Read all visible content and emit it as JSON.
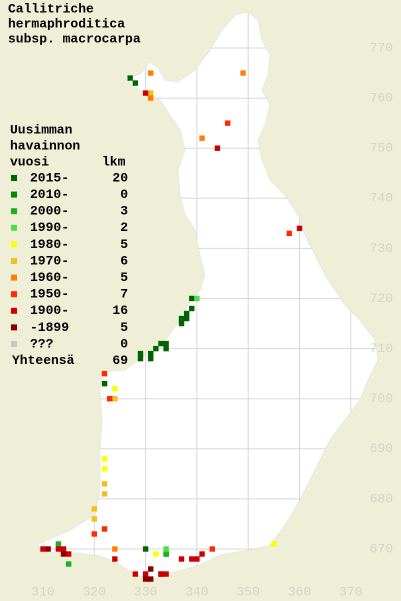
{
  "title": [
    "Callitriche",
    "hermaphroditica",
    "subsp. macrocarpa"
  ],
  "map": {
    "xticks": [
      310,
      320,
      330,
      340,
      350,
      360,
      370
    ],
    "yticks": [
      670,
      680,
      690,
      700,
      710,
      720,
      730,
      740,
      750,
      760,
      770
    ]
  },
  "legend": {
    "title": [
      "Uusimman",
      "havainnon",
      "vuosi"
    ],
    "count_header": "lkm",
    "entries": [
      {
        "label": "2015-",
        "count": 20,
        "color": "#006400"
      },
      {
        "label": "2010-",
        "count": 0,
        "color": "#008a00"
      },
      {
        "label": "2000-",
        "count": 3,
        "color": "#1fb01f"
      },
      {
        "label": "1990-",
        "count": 2,
        "color": "#4ae04a"
      },
      {
        "label": "1980-",
        "count": 5,
        "color": "#ffff00"
      },
      {
        "label": "1970-",
        "count": 6,
        "color": "#f0c020"
      },
      {
        "label": "1960-",
        "count": 5,
        "color": "#ff7f00"
      },
      {
        "label": "1950-",
        "count": 7,
        "color": "#ff2a00"
      },
      {
        "label": "1900-",
        "count": 16,
        "color": "#cc0000"
      },
      {
        "label": "-1899",
        "count": 5,
        "color": "#8b0000"
      },
      {
        "label": "???",
        "count": 0,
        "color": "#c8c8c8"
      }
    ],
    "total_label": "Yhteensä",
    "total": 69
  },
  "points": [
    {
      "x": 327,
      "y": 764,
      "class": 0
    },
    {
      "x": 328,
      "y": 763,
      "class": 0
    },
    {
      "x": 329,
      "y": 709,
      "class": 0
    },
    {
      "x": 329,
      "y": 708,
      "class": 0
    },
    {
      "x": 331,
      "y": 709,
      "class": 0
    },
    {
      "x": 331,
      "y": 708,
      "class": 0
    },
    {
      "x": 332,
      "y": 710,
      "class": 0
    },
    {
      "x": 333,
      "y": 711,
      "class": 0
    },
    {
      "x": 334,
      "y": 711,
      "class": 0
    },
    {
      "x": 334,
      "y": 710,
      "class": 0
    },
    {
      "x": 337,
      "y": 716,
      "class": 0
    },
    {
      "x": 337,
      "y": 715,
      "class": 0
    },
    {
      "x": 338,
      "y": 717,
      "class": 0
    },
    {
      "x": 338,
      "y": 716,
      "class": 0
    },
    {
      "x": 339,
      "y": 718,
      "class": 0
    },
    {
      "x": 339,
      "y": 720,
      "class": 0
    },
    {
      "x": 322,
      "y": 703,
      "class": 0
    },
    {
      "x": 334,
      "y": 669,
      "class": 0
    },
    {
      "x": 333,
      "y": 665,
      "class": 0
    },
    {
      "x": 330,
      "y": 670,
      "class": 0
    },
    {
      "x": 313,
      "y": 671,
      "class": 2
    },
    {
      "x": 315,
      "y": 667,
      "class": 2
    },
    {
      "x": 334,
      "y": 669,
      "class": 2
    },
    {
      "x": 340,
      "y": 720,
      "class": 3
    },
    {
      "x": 334,
      "y": 670,
      "class": 3
    },
    {
      "x": 332,
      "y": 669,
      "class": 4
    },
    {
      "x": 322,
      "y": 688,
      "class": 4
    },
    {
      "x": 322,
      "y": 686,
      "class": 4
    },
    {
      "x": 355,
      "y": 671,
      "class": 4
    },
    {
      "x": 324,
      "y": 702,
      "class": 4
    },
    {
      "x": 322,
      "y": 683,
      "class": 5
    },
    {
      "x": 322,
      "y": 681,
      "class": 5
    },
    {
      "x": 320,
      "y": 678,
      "class": 5
    },
    {
      "x": 320,
      "y": 676,
      "class": 5
    },
    {
      "x": 324,
      "y": 700,
      "class": 5
    },
    {
      "x": 331,
      "y": 761,
      "class": 5
    },
    {
      "x": 331,
      "y": 760,
      "class": 6
    },
    {
      "x": 349,
      "y": 765,
      "class": 6
    },
    {
      "x": 341,
      "y": 752,
      "class": 6
    },
    {
      "x": 324,
      "y": 670,
      "class": 6
    },
    {
      "x": 331,
      "y": 765,
      "class": 6
    },
    {
      "x": 346,
      "y": 755,
      "class": 7
    },
    {
      "x": 358,
      "y": 733,
      "class": 7
    },
    {
      "x": 323,
      "y": 700,
      "class": 7
    },
    {
      "x": 322,
      "y": 705,
      "class": 7
    },
    {
      "x": 322,
      "y": 674,
      "class": 7
    },
    {
      "x": 320,
      "y": 673,
      "class": 7
    },
    {
      "x": 343,
      "y": 670,
      "class": 7
    },
    {
      "x": 344,
      "y": 750,
      "class": 8
    },
    {
      "x": 360,
      "y": 734,
      "class": 8
    },
    {
      "x": 330,
      "y": 761,
      "class": 8
    },
    {
      "x": 337,
      "y": 668,
      "class": 8
    },
    {
      "x": 339,
      "y": 668,
      "class": 8
    },
    {
      "x": 340,
      "y": 668,
      "class": 8
    },
    {
      "x": 341,
      "y": 669,
      "class": 8
    },
    {
      "x": 324,
      "y": 668,
      "class": 8
    },
    {
      "x": 310,
      "y": 670,
      "class": 8
    },
    {
      "x": 313,
      "y": 670,
      "class": 8
    },
    {
      "x": 314,
      "y": 670,
      "class": 8
    },
    {
      "x": 315,
      "y": 669,
      "class": 8
    },
    {
      "x": 328,
      "y": 665,
      "class": 8
    },
    {
      "x": 330,
      "y": 665,
      "class": 8
    },
    {
      "x": 333,
      "y": 665,
      "class": 8
    },
    {
      "x": 334,
      "y": 665,
      "class": 8
    },
    {
      "x": 330,
      "y": 664,
      "class": 9
    },
    {
      "x": 331,
      "y": 664,
      "class": 9
    },
    {
      "x": 311,
      "y": 670,
      "class": 9
    },
    {
      "x": 314,
      "y": 669,
      "class": 9
    },
    {
      "x": 331,
      "y": 666,
      "class": 9
    }
  ]
}
